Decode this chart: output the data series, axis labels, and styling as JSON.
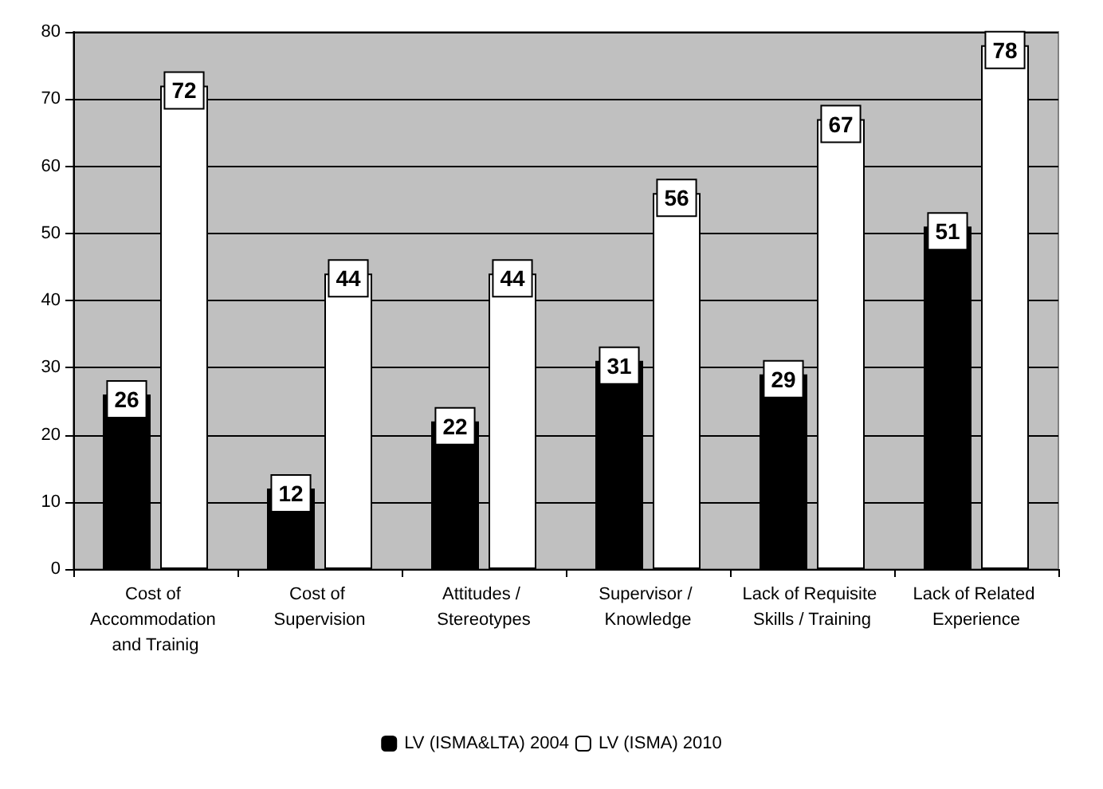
{
  "chart_data": {
    "type": "bar",
    "categories": [
      "Cost of Accommodation and Trainig",
      "Cost of Supervision",
      "Attitudes / Stereotypes",
      "Supervisor / Knowledge",
      "Lack of Requisite Skills / Training",
      "Lack of Related Experience"
    ],
    "series": [
      {
        "name": "LV (ISMA&LTA) 2004",
        "color": "#000000",
        "values": [
          26,
          12,
          22,
          31,
          29,
          51
        ]
      },
      {
        "name": "LV (ISMA) 2010",
        "color": "#ffffff",
        "values": [
          72,
          44,
          44,
          56,
          67,
          78
        ]
      }
    ],
    "ylim": [
      0,
      80
    ],
    "yticks": [
      0,
      10,
      20,
      30,
      40,
      50,
      60,
      70,
      80
    ],
    "grid": "y",
    "legend": "bottom",
    "data_labels": true
  }
}
